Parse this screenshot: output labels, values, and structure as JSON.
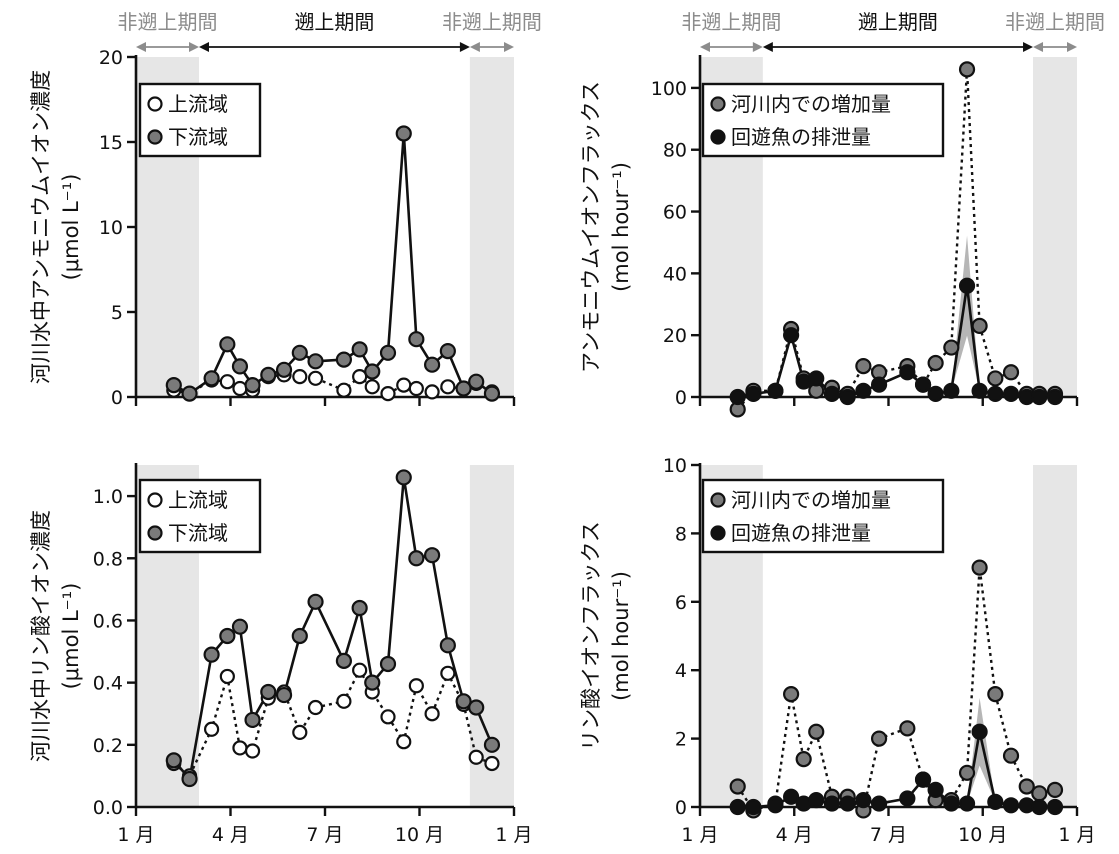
{
  "chart_data": [
    {
      "type": "line",
      "ylabel": "河川水中アンモニウムイオン濃度",
      "yunit": "(μmol L⁻¹)",
      "ylim": [
        0,
        20
      ],
      "yticks": [
        0,
        5,
        10,
        15,
        20
      ],
      "xlim": [
        1,
        13
      ],
      "xticks": [
        1,
        4,
        7,
        10,
        13
      ],
      "xtick_labels": [
        "1 月",
        "4 月",
        "7 月",
        "10 月",
        "1 月"
      ],
      "nonrun_periods": [
        [
          1,
          3.0
        ],
        [
          11.6,
          13
        ]
      ],
      "period_labels": {
        "left": "非遡上期間",
        "center": "遡上期間",
        "right": "非遡上期間"
      },
      "legend": [
        "上流域",
        "下流域"
      ],
      "series": [
        {
          "name": "上流域",
          "style": "open-dotted",
          "x": [
            2.2,
            2.7,
            3.4,
            3.9,
            4.3,
            4.7,
            5.2,
            5.7,
            6.2,
            6.7,
            7.6,
            8.1,
            8.5,
            9.0,
            9.5,
            9.9,
            10.4,
            10.9,
            11.4,
            11.8,
            12.3
          ],
          "y": [
            0.4,
            0.2,
            1.0,
            0.9,
            0.5,
            0.4,
            1.2,
            1.3,
            1.2,
            1.1,
            0.4,
            1.2,
            0.6,
            0.2,
            0.7,
            0.5,
            0.3,
            0.6,
            0.5,
            0.8,
            0.3
          ]
        },
        {
          "name": "下流域",
          "style": "gray-solid",
          "x": [
            2.2,
            2.7,
            3.4,
            3.9,
            4.3,
            4.7,
            5.2,
            5.7,
            6.2,
            6.7,
            7.6,
            8.1,
            8.5,
            9.0,
            9.5,
            9.9,
            10.4,
            10.9,
            11.4,
            11.8,
            12.3
          ],
          "y": [
            0.7,
            0.2,
            1.1,
            3.1,
            1.8,
            0.7,
            1.3,
            1.6,
            2.6,
            2.1,
            2.2,
            2.8,
            1.5,
            2.6,
            15.5,
            3.4,
            1.9,
            2.7,
            0.5,
            0.9,
            0.2
          ]
        }
      ]
    },
    {
      "type": "line",
      "ylabel": "アンモニウムイオンフラックス",
      "yunit": "(mol hour⁻¹)",
      "ylim": [
        0,
        110
      ],
      "yticks": [
        0,
        20,
        40,
        60,
        80,
        100
      ],
      "xlim": [
        1,
        13
      ],
      "xticks": [
        1,
        4,
        7,
        10,
        13
      ],
      "xtick_labels": [
        "1 月",
        "4 月",
        "7 月",
        "10 月",
        "1 月"
      ],
      "nonrun_periods": [
        [
          1,
          3.0
        ],
        [
          11.6,
          13
        ]
      ],
      "period_labels": {
        "left": "非遡上期間",
        "center": "遡上期間",
        "right": "非遡上期間"
      },
      "legend": [
        "河川内での増加量",
        "回遊魚の排泄量"
      ],
      "series": [
        {
          "name": "河川内での増加量",
          "style": "gray-dotted",
          "x": [
            2.2,
            2.7,
            3.4,
            3.9,
            4.3,
            4.7,
            5.2,
            5.7,
            6.2,
            6.7,
            7.6,
            8.1,
            8.5,
            9.0,
            9.5,
            9.9,
            10.4,
            10.9,
            11.4,
            11.8,
            12.3
          ],
          "y": [
            -4,
            2,
            2,
            22,
            6,
            2,
            3,
            1,
            10,
            8,
            10,
            4,
            11,
            16,
            106,
            23,
            6,
            8,
            1,
            1,
            1
          ]
        },
        {
          "name": "回遊魚の排泄量",
          "style": "black-solid",
          "x": [
            2.2,
            2.7,
            3.4,
            3.9,
            4.3,
            4.7,
            5.2,
            5.7,
            6.2,
            6.7,
            7.6,
            8.1,
            8.5,
            9.0,
            9.5,
            9.9,
            10.4,
            10.9,
            11.4,
            11.8,
            12.3
          ],
          "y": [
            0,
            1,
            2,
            20,
            5,
            6,
            1,
            0,
            2,
            4,
            8,
            4,
            1,
            2,
            36,
            2,
            1,
            1,
            0,
            0,
            0
          ]
        }
      ]
    },
    {
      "type": "line",
      "ylabel": "河川水中リン酸イオン濃度",
      "yunit": "(μmol L⁻¹)",
      "ylim": [
        0,
        1.1
      ],
      "yticks": [
        0.0,
        0.2,
        0.4,
        0.6,
        0.8,
        1.0
      ],
      "ytick_labels": [
        "0.0",
        "0.2",
        "0.4",
        "0.6",
        "0.8",
        "1.0"
      ],
      "xlim": [
        1,
        13
      ],
      "xticks": [
        1,
        4,
        7,
        10,
        13
      ],
      "xtick_labels": [
        "1 月",
        "4 月",
        "7 月",
        "10 月",
        "1 月"
      ],
      "nonrun_periods": [
        [
          1,
          3.0
        ],
        [
          11.6,
          13
        ]
      ],
      "legend": [
        "上流域",
        "下流域"
      ],
      "series": [
        {
          "name": "上流域",
          "style": "open-dotted",
          "x": [
            2.2,
            2.7,
            3.4,
            3.9,
            4.3,
            4.7,
            5.2,
            5.7,
            6.2,
            6.7,
            7.6,
            8.1,
            8.5,
            9.0,
            9.5,
            9.9,
            10.4,
            10.9,
            11.4,
            11.8,
            12.3
          ],
          "y": [
            0.14,
            0.1,
            0.25,
            0.42,
            0.19,
            0.18,
            0.35,
            0.37,
            0.24,
            0.32,
            0.34,
            0.44,
            0.37,
            0.29,
            0.21,
            0.39,
            0.3,
            0.43,
            0.33,
            0.16,
            0.14
          ]
        },
        {
          "name": "下流域",
          "style": "gray-solid",
          "x": [
            2.2,
            2.7,
            3.4,
            3.9,
            4.3,
            4.7,
            5.2,
            5.7,
            6.2,
            6.7,
            7.6,
            8.1,
            8.5,
            9.0,
            9.5,
            9.9,
            10.4,
            10.9,
            11.4,
            11.8,
            12.3
          ],
          "y": [
            0.15,
            0.09,
            0.49,
            0.55,
            0.58,
            0.28,
            0.37,
            0.36,
            0.55,
            0.66,
            0.47,
            0.64,
            0.4,
            0.46,
            1.06,
            0.8,
            0.81,
            0.52,
            0.34,
            0.32,
            0.2
          ]
        }
      ]
    },
    {
      "type": "line",
      "ylabel": "リン酸イオンフラックス",
      "yunit": "(mol hour⁻¹)",
      "ylim": [
        0,
        10
      ],
      "yticks": [
        0,
        2,
        4,
        6,
        8,
        10
      ],
      "xlim": [
        1,
        13
      ],
      "xticks": [
        1,
        4,
        7,
        10,
        13
      ],
      "xtick_labels": [
        "1 月",
        "4 月",
        "7 月",
        "10 月",
        "1 月"
      ],
      "nonrun_periods": [
        [
          1,
          3.0
        ],
        [
          11.6,
          13
        ]
      ],
      "legend": [
        "河川内での増加量",
        "回遊魚の排泄量"
      ],
      "series": [
        {
          "name": "河川内での増加量",
          "style": "gray-dotted",
          "x": [
            2.2,
            2.7,
            3.4,
            3.9,
            4.3,
            4.7,
            5.2,
            5.7,
            6.2,
            6.7,
            7.6,
            8.1,
            8.5,
            9.0,
            9.5,
            9.9,
            10.4,
            10.9,
            11.4,
            11.8,
            12.3
          ],
          "y": [
            0.6,
            -0.1,
            0.1,
            3.3,
            1.4,
            2.2,
            0.3,
            0.3,
            -0.1,
            2.0,
            2.3,
            0.8,
            0.2,
            0.2,
            1.0,
            7.0,
            3.3,
            1.5,
            0.6,
            0.4,
            0.5
          ]
        },
        {
          "name": "回遊魚の排泄量",
          "style": "black-solid",
          "x": [
            2.2,
            2.7,
            3.4,
            3.9,
            4.3,
            4.7,
            5.2,
            5.7,
            6.2,
            6.7,
            7.6,
            8.1,
            8.5,
            9.0,
            9.5,
            9.9,
            10.4,
            10.9,
            11.4,
            11.8,
            12.3
          ],
          "y": [
            0,
            0,
            0.05,
            0.3,
            0.1,
            0.2,
            0.1,
            0.1,
            0.2,
            0.1,
            0.25,
            0.8,
            0.5,
            0.1,
            0.1,
            2.2,
            0.15,
            0.05,
            0.05,
            0,
            0
          ]
        }
      ]
    }
  ],
  "colors": {
    "shade": "#e6e6e6",
    "gray_marker": "#7a7a7a",
    "period_gray": "#8c8c8c",
    "black": "#111111"
  }
}
